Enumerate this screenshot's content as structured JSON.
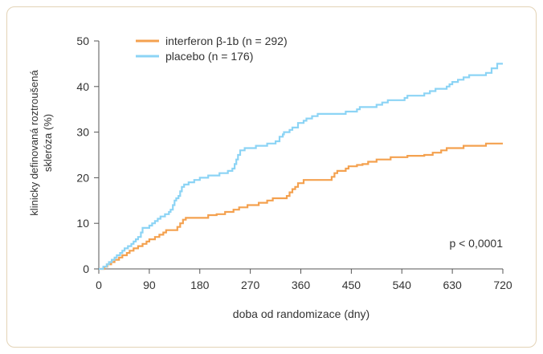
{
  "chart_data": {
    "type": "line",
    "step": true,
    "title": "",
    "xlabel": "doba od randomizace (dny)",
    "ylabel": [
      "klinicky definovaná roztroušená",
      "skleróza (%)"
    ],
    "xlim": [
      0,
      720
    ],
    "ylim": [
      0,
      50
    ],
    "x_ticks": [
      0,
      90,
      180,
      270,
      360,
      450,
      540,
      630,
      720
    ],
    "y_ticks": [
      0,
      10,
      20,
      30,
      40,
      50
    ],
    "grid": false,
    "legend_position": "top-left",
    "annotation": "p < 0,0001",
    "series": [
      {
        "name": "interferon β-1b (n = 292)",
        "color": "#f4a14f",
        "points": [
          [
            0,
            0
          ],
          [
            10,
            0.5
          ],
          [
            15,
            1
          ],
          [
            22,
            1.5
          ],
          [
            28,
            2
          ],
          [
            36,
            2.5
          ],
          [
            42,
            3
          ],
          [
            50,
            3.5
          ],
          [
            55,
            4
          ],
          [
            62,
            4.5
          ],
          [
            70,
            5
          ],
          [
            78,
            5.5
          ],
          [
            85,
            6
          ],
          [
            90,
            6.5
          ],
          [
            100,
            7
          ],
          [
            108,
            7.5
          ],
          [
            115,
            8
          ],
          [
            120,
            8.5
          ],
          [
            140,
            9.2
          ],
          [
            145,
            10
          ],
          [
            150,
            10.8
          ],
          [
            155,
            11.2
          ],
          [
            195,
            11.8
          ],
          [
            210,
            12
          ],
          [
            225,
            12.5
          ],
          [
            240,
            13
          ],
          [
            250,
            13.5
          ],
          [
            265,
            14
          ],
          [
            285,
            14.5
          ],
          [
            300,
            15
          ],
          [
            310,
            15.5
          ],
          [
            335,
            16
          ],
          [
            340,
            16.8
          ],
          [
            345,
            17.5
          ],
          [
            350,
            18
          ],
          [
            355,
            18.8
          ],
          [
            365,
            19.5
          ],
          [
            415,
            20.2
          ],
          [
            420,
            21
          ],
          [
            425,
            21.5
          ],
          [
            440,
            22
          ],
          [
            445,
            22.5
          ],
          [
            460,
            22.8
          ],
          [
            470,
            23
          ],
          [
            480,
            23.5
          ],
          [
            495,
            24
          ],
          [
            520,
            24.5
          ],
          [
            550,
            24.8
          ],
          [
            580,
            25
          ],
          [
            595,
            25.5
          ],
          [
            610,
            26
          ],
          [
            620,
            26.5
          ],
          [
            650,
            27
          ],
          [
            690,
            27.5
          ],
          [
            720,
            27.5
          ]
        ]
      },
      {
        "name": "placebo (n = 176)",
        "color": "#8cd4f5",
        "points": [
          [
            0,
            0
          ],
          [
            8,
            0.5
          ],
          [
            14,
            1
          ],
          [
            18,
            1.5
          ],
          [
            23,
            2
          ],
          [
            28,
            2.5
          ],
          [
            32,
            3
          ],
          [
            38,
            3.5
          ],
          [
            42,
            4
          ],
          [
            46,
            4.5
          ],
          [
            52,
            5
          ],
          [
            58,
            5.5
          ],
          [
            62,
            6
          ],
          [
            66,
            6.5
          ],
          [
            70,
            7
          ],
          [
            75,
            8
          ],
          [
            78,
            9
          ],
          [
            90,
            9.5
          ],
          [
            95,
            10
          ],
          [
            100,
            10.5
          ],
          [
            105,
            11
          ],
          [
            110,
            11.5
          ],
          [
            118,
            12
          ],
          [
            125,
            12.5
          ],
          [
            128,
            13
          ],
          [
            132,
            14
          ],
          [
            135,
            15
          ],
          [
            138,
            15.5
          ],
          [
            142,
            16
          ],
          [
            145,
            17
          ],
          [
            148,
            18
          ],
          [
            152,
            18.5
          ],
          [
            160,
            19
          ],
          [
            170,
            19.5
          ],
          [
            180,
            20
          ],
          [
            195,
            20.5
          ],
          [
            215,
            21
          ],
          [
            230,
            21.5
          ],
          [
            238,
            22
          ],
          [
            242,
            23
          ],
          [
            245,
            24
          ],
          [
            248,
            25
          ],
          [
            252,
            26
          ],
          [
            260,
            26.5
          ],
          [
            280,
            27
          ],
          [
            300,
            27.5
          ],
          [
            315,
            28
          ],
          [
            322,
            29
          ],
          [
            328,
            29.5
          ],
          [
            330,
            30
          ],
          [
            340,
            30.5
          ],
          [
            345,
            31
          ],
          [
            355,
            32
          ],
          [
            365,
            32.5
          ],
          [
            370,
            33
          ],
          [
            380,
            33.5
          ],
          [
            390,
            34
          ],
          [
            440,
            34.5
          ],
          [
            460,
            35
          ],
          [
            465,
            35.5
          ],
          [
            495,
            36
          ],
          [
            505,
            36.5
          ],
          [
            515,
            37
          ],
          [
            545,
            37.5
          ],
          [
            550,
            38
          ],
          [
            580,
            38.5
          ],
          [
            590,
            39
          ],
          [
            600,
            39.5
          ],
          [
            620,
            40
          ],
          [
            625,
            40.5
          ],
          [
            630,
            41
          ],
          [
            640,
            41.5
          ],
          [
            650,
            42
          ],
          [
            660,
            42.5
          ],
          [
            690,
            43
          ],
          [
            700,
            44
          ],
          [
            710,
            45
          ],
          [
            720,
            45
          ]
        ]
      }
    ]
  }
}
